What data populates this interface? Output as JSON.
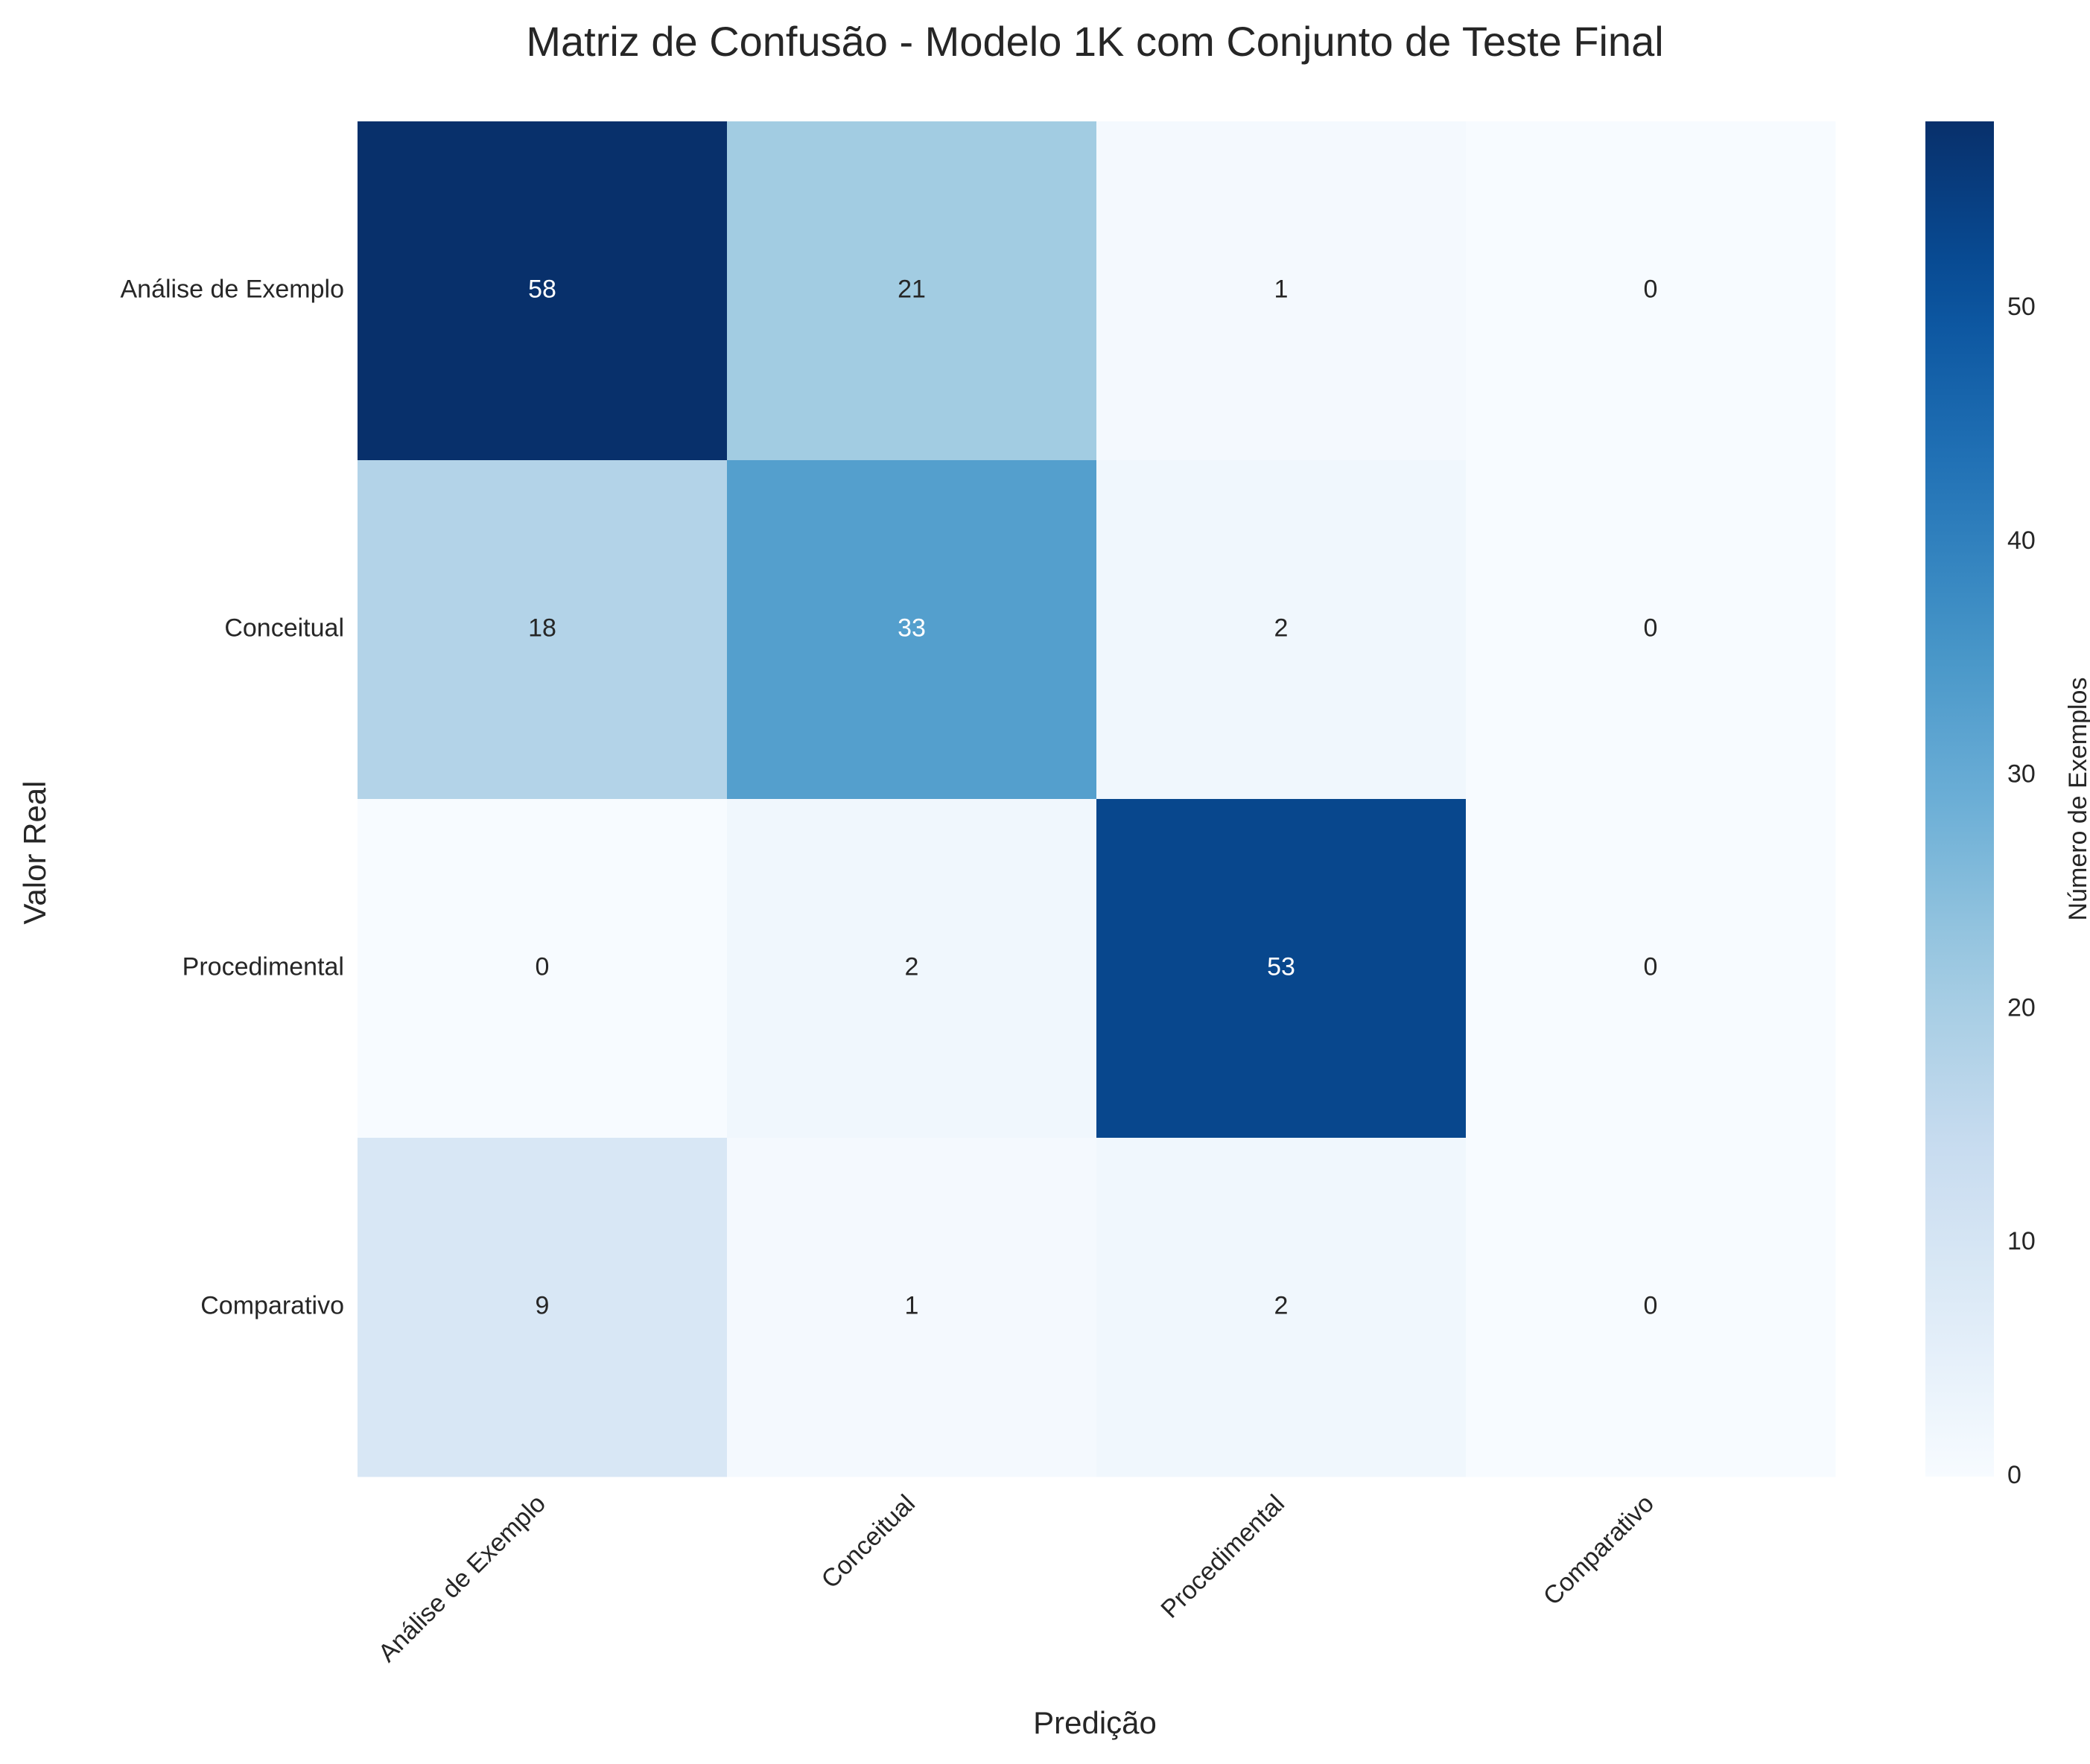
{
  "chart_data": {
    "type": "heatmap",
    "title": "Matriz de Confusão - Modelo 1K com Conjunto de Teste Final",
    "xlabel": "Predição",
    "ylabel": "Valor Real",
    "x_categories": [
      "Análise de Exemplo",
      "Conceitual",
      "Procedimental",
      "Comparativo"
    ],
    "y_categories": [
      "Análise de Exemplo",
      "Conceitual",
      "Procedimental",
      "Comparativo"
    ],
    "values": [
      [
        58,
        21,
        1,
        0
      ],
      [
        18,
        33,
        2,
        0
      ],
      [
        0,
        2,
        53,
        0
      ],
      [
        9,
        1,
        2,
        0
      ]
    ],
    "colorbar": {
      "label": "Número de Exemplos",
      "range": [
        0,
        58
      ],
      "ticks": [
        0,
        10,
        20,
        30,
        40,
        50
      ],
      "colormap": "Blues"
    },
    "colors": {
      "low": "#f7fbff",
      "high": "#08306b",
      "text_dark": "#262626",
      "text_light": "#ffffff"
    },
    "grid": false
  }
}
